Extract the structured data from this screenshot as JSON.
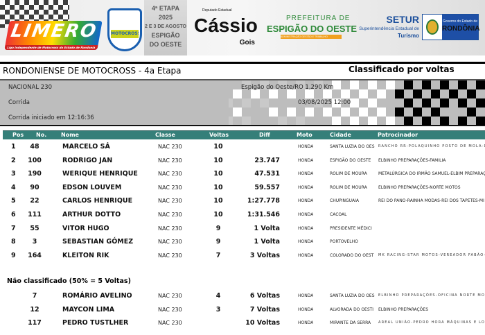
{
  "banner": {
    "limero_logo": "LIMERO",
    "limero_tag": "Liga Independente de Motocross do Estado de Rondonia",
    "emblem": "MOTOCROSS 2025",
    "etapa": [
      "4ª ETAPA",
      "2025",
      "2 E 3 DE AGOSTO",
      "ESPIGÃO",
      "DO OESTE"
    ],
    "cassio": {
      "top": "Deputado Estadual",
      "name": "Cássio",
      "sub": "Gois"
    },
    "prefeitura": {
      "l1": "PREFEITURA DE",
      "l2": "ESPIGÃO DO OESTE",
      "l3": "ADMINISTRAÇÃO GESTÃO E TRABALHO"
    },
    "setur": {
      "s1": "SETUR",
      "s2": "Superintendência Estadual de",
      "s3": "Turismo"
    },
    "rondonia": {
      "a": "Governo do Estado de",
      "b": "RONDÔNIA"
    }
  },
  "title": "RONDONIENSE DE MOTOCROSS - 4a Etapa",
  "subtitle": "Classificado por voltas",
  "info": {
    "category": "NACIONAL 230",
    "location": "Espigão do Oeste/RO 1,290 Km",
    "session": "Corrida",
    "datetime": "03/08/2025 12:00",
    "started": "Corrida iniciado em 12:16:36"
  },
  "columns": [
    "Pos",
    "No.",
    "Nome",
    "Classe",
    "Voltas",
    "Diff",
    "Moto",
    "Cidade",
    "Patrocinador"
  ],
  "classified": [
    {
      "pos": "1",
      "no": "48",
      "name": "MARCELO SÁ",
      "cls": "NAC 230",
      "laps": "10",
      "diff": "",
      "moto": "HONDA",
      "city": "SANTA LUZIA DO OES",
      "sponsor": "RANCHO RR-POLAQUINHO POSTO DE MOLA-DIEBAR",
      "spaced": true
    },
    {
      "pos": "2",
      "no": "100",
      "name": "RODRIGO JAN",
      "cls": "NAC 230",
      "laps": "10",
      "diff": "23.747",
      "moto": "HONDA",
      "city": "ESPIGÃO DO OESTE",
      "sponsor": "ELBINHO PREPARAÇÕES-FAMILIA"
    },
    {
      "pos": "3",
      "no": "190",
      "name": "WERIQUE HENRIQUE",
      "cls": "NAC 230",
      "laps": "10",
      "diff": "47.531",
      "moto": "HONDA",
      "city": "ROLIM DE MOURA",
      "sponsor": "METALÚRGICA DO IRMÃO SAMUEL-ELBIM PREPARAÇ"
    },
    {
      "pos": "4",
      "no": "90",
      "name": "EDSON LOUVEM",
      "cls": "NAC 230",
      "laps": "10",
      "diff": "59.557",
      "moto": "HONDA",
      "city": "ROLIM DE MOURA",
      "sponsor": "ELBINHO PREPARAÇÕES-NORTE MOTOS"
    },
    {
      "pos": "5",
      "no": "22",
      "name": "CARLOS HENRIQUE",
      "cls": "NAC 230",
      "laps": "10",
      "diff": "1:27.778",
      "moto": "HONDA",
      "city": "CHUPINGUAIA",
      "sponsor": "REI DO PANO-RAINHA MODAS-REI DOS TAPETES-MI"
    },
    {
      "pos": "6",
      "no": "111",
      "name": "ARTHUR DOTTO",
      "cls": "NAC 230",
      "laps": "10",
      "diff": "1:31.546",
      "moto": "HONDA",
      "city": "CACOAL",
      "sponsor": ""
    },
    {
      "pos": "7",
      "no": "55",
      "name": "VITOR HUGO",
      "cls": "NAC 230",
      "laps": "9",
      "diff": "1 Volta",
      "moto": "HONDA",
      "city": "PRESIDENTE MÉDICI",
      "sponsor": ""
    },
    {
      "pos": "8",
      "no": "3",
      "name": "SEBASTIAN GÓMEZ",
      "cls": "NAC 230",
      "laps": "9",
      "diff": "1 Volta",
      "moto": "HONDA",
      "city": "PORTOVELHO",
      "sponsor": ""
    },
    {
      "pos": "9",
      "no": "164",
      "name": "KLEITON RIK",
      "cls": "NAC 230",
      "laps": "7",
      "diff": "3 Voltas",
      "moto": "HONDA",
      "city": "COLORADO DO OEST",
      "sponsor": "MK RACING-STAR MOTOS-VEREADOR FABÃO-GILSON",
      "spaced": true
    }
  ],
  "not_classified_label": "Não classificado (50% = 5 Voltas)",
  "not_classified": [
    {
      "pos": "",
      "no": "7",
      "name": "ROMÁRIO AVELINO",
      "cls": "NAC 230",
      "laps": "4",
      "diff": "6 Voltas",
      "moto": "HONDA",
      "city": "SANTA LUZIA DO OES",
      "sponsor": "ELBINHO PREPARAÇÕES-OFICINA NORTE MOTOS-AT",
      "spaced": true
    },
    {
      "pos": "",
      "no": "12",
      "name": "MAYCON LIMA",
      "cls": "NAC 230",
      "laps": "3",
      "diff": "7 Voltas",
      "moto": "HONDA",
      "city": "ALVORADA DO OESTI",
      "sponsor": "ELBINHO PREPARAÇÕES"
    },
    {
      "pos": "",
      "no": "117",
      "name": "PEDRO TUSTLHER",
      "cls": "NAC 230",
      "laps": "",
      "diff": "10 Voltas",
      "moto": "HONDA",
      "city": "MIRANTE DA SERRA",
      "sponsor": "AREAL UNIÃO-PEDRO HORA MÁQUINAS E LOCAÇÕES",
      "spaced": true
    }
  ]
}
